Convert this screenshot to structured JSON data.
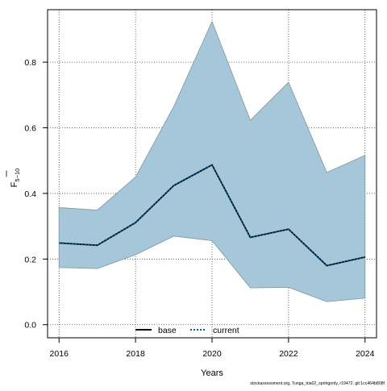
{
  "chart_data": {
    "type": "area",
    "xlabel": "Years",
    "ylabel": "F",
    "ylabel_subscript": "5−10",
    "xlim": [
      2015.7,
      2024.3
    ],
    "ylim": [
      -0.04,
      0.96
    ],
    "x_ticks": [
      2016,
      2018,
      2020,
      2022,
      2024
    ],
    "x_tick_labels": [
      "2016",
      "2018",
      "2020",
      "2022",
      "2024"
    ],
    "y_ticks": [
      0.0,
      0.2,
      0.4,
      0.6,
      0.8
    ],
    "y_tick_labels": [
      "0.0",
      "0.2",
      "0.4",
      "0.6",
      "0.8"
    ],
    "grid": true,
    "legend_position": "bottom",
    "x": [
      2016,
      2017,
      2018,
      2019,
      2020,
      2021,
      2022,
      2023,
      2024
    ],
    "band": {
      "lower": [
        0.174,
        0.171,
        0.213,
        0.27,
        0.256,
        0.112,
        0.114,
        0.07,
        0.081
      ],
      "upper": [
        0.357,
        0.349,
        0.45,
        0.665,
        0.924,
        0.623,
        0.739,
        0.464,
        0.516
      ],
      "fill": "#a6c7d9",
      "edge": "#7f959f"
    },
    "series": [
      {
        "name": "base",
        "values": [
          0.249,
          0.242,
          0.311,
          0.424,
          0.487,
          0.266,
          0.291,
          0.18,
          0.206
        ],
        "color": "#000000",
        "style": "solid"
      },
      {
        "name": "current",
        "values": [
          0.249,
          0.242,
          0.311,
          0.424,
          0.487,
          0.266,
          0.291,
          0.18,
          0.206
        ],
        "color": "#0a5d8f",
        "style": "dotted"
      }
    ],
    "legend": [
      {
        "label": "base",
        "color": "#000000",
        "style": "solid"
      },
      {
        "label": "current",
        "color": "#0a5d8f",
        "style": "dotted"
      }
    ]
  },
  "footer": "stockassessment.org, Tunga_tria02_springonly, r19472, git:1cc464b808f"
}
